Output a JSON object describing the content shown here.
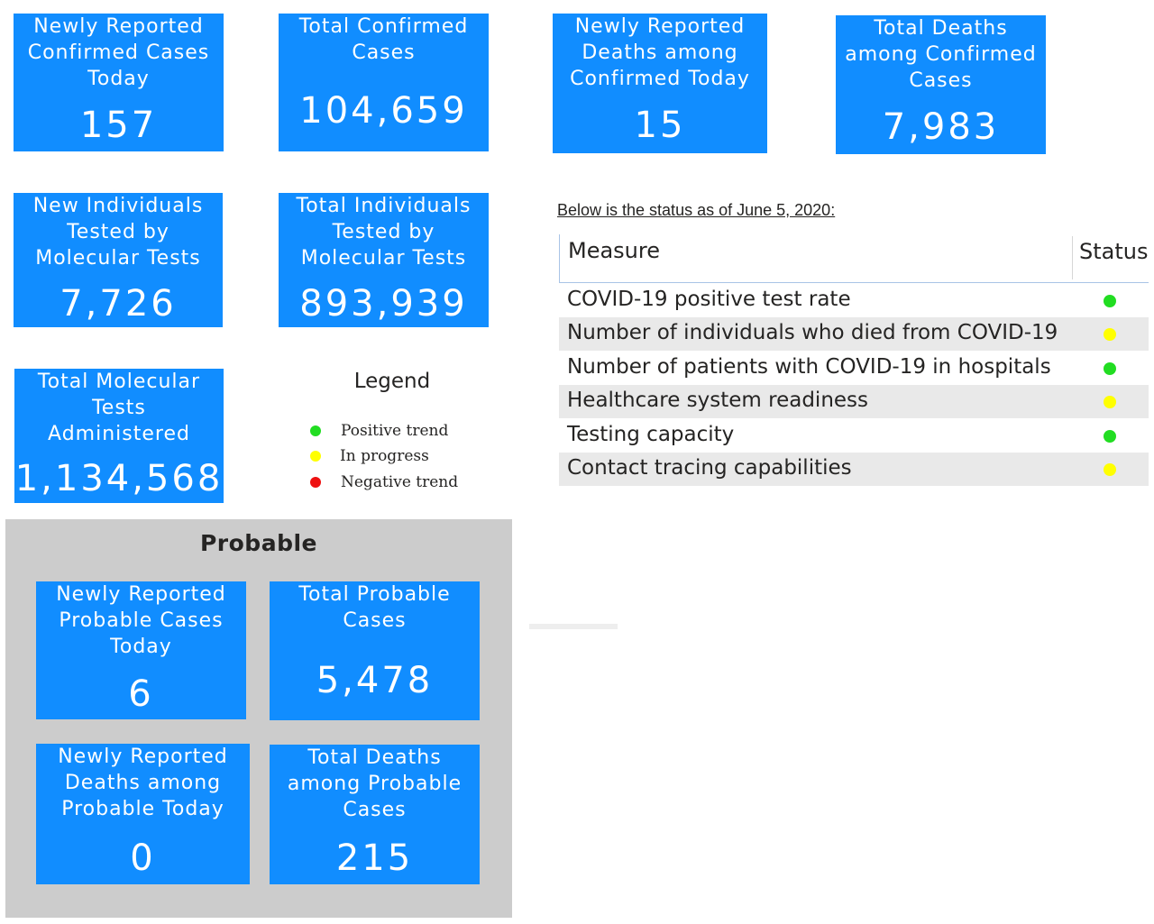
{
  "cards": {
    "new_confirmed": {
      "label": "Newly Reported\nConfirmed Cases\nToday",
      "value": "157"
    },
    "total_confirmed": {
      "label": "Total Confirmed\nCases",
      "value": "104,659"
    },
    "new_deaths_confirmed": {
      "label": "Newly Reported\nDeaths among\nConfirmed Today",
      "value": "15"
    },
    "total_deaths_confirmed": {
      "label": "Total Deaths\namong Confirmed\nCases",
      "value": "7,983"
    },
    "new_tested": {
      "label": "New Individuals\nTested by\nMolecular Tests",
      "value": "7,726"
    },
    "total_tested": {
      "label": "Total Individuals\nTested by\nMolecular Tests",
      "value": "893,939"
    },
    "total_molecular": {
      "label": "Total Molecular\nTests\nAdministered",
      "value": "1,134,568"
    }
  },
  "legend": {
    "title": "Legend",
    "items": [
      {
        "label": "Positive trend",
        "color": "#22dd22"
      },
      {
        "label": "In progress",
        "color": "#ffff00"
      },
      {
        "label": "Negative trend",
        "color": "#ee1111"
      }
    ]
  },
  "probable": {
    "title": "Probable",
    "cards": {
      "new_probable": {
        "label": "Newly Reported\nProbable Cases\nToday",
        "value": "6"
      },
      "total_probable": {
        "label": "Total Probable\nCases",
        "value": "5,478"
      },
      "new_deaths_probable": {
        "label": "Newly Reported\nDeaths among\nProbable Today",
        "value": "0"
      },
      "total_deaths_probable": {
        "label": "Total Deaths\namong Probable\nCases",
        "value": "215"
      }
    }
  },
  "status": {
    "caption": "Below is the status as of June 5, 2020:",
    "headers": {
      "measure": "Measure",
      "status": "Status"
    },
    "rows": [
      {
        "measure": "COVID-19 positive test rate",
        "status_color": "#22dd22"
      },
      {
        "measure": "Number of individuals who died from COVID-19",
        "status_color": "#ffff00"
      },
      {
        "measure": "Number of patients with COVID-19 in hospitals",
        "status_color": "#22dd22"
      },
      {
        "measure": "Healthcare system readiness",
        "status_color": "#ffff00"
      },
      {
        "measure": "Testing capacity",
        "status_color": "#22dd22"
      },
      {
        "measure": "Contact tracing capabilities",
        "status_color": "#ffff00"
      }
    ]
  },
  "colors": {
    "card_blue": "#118dff",
    "panel_gray": "#cccccc"
  }
}
